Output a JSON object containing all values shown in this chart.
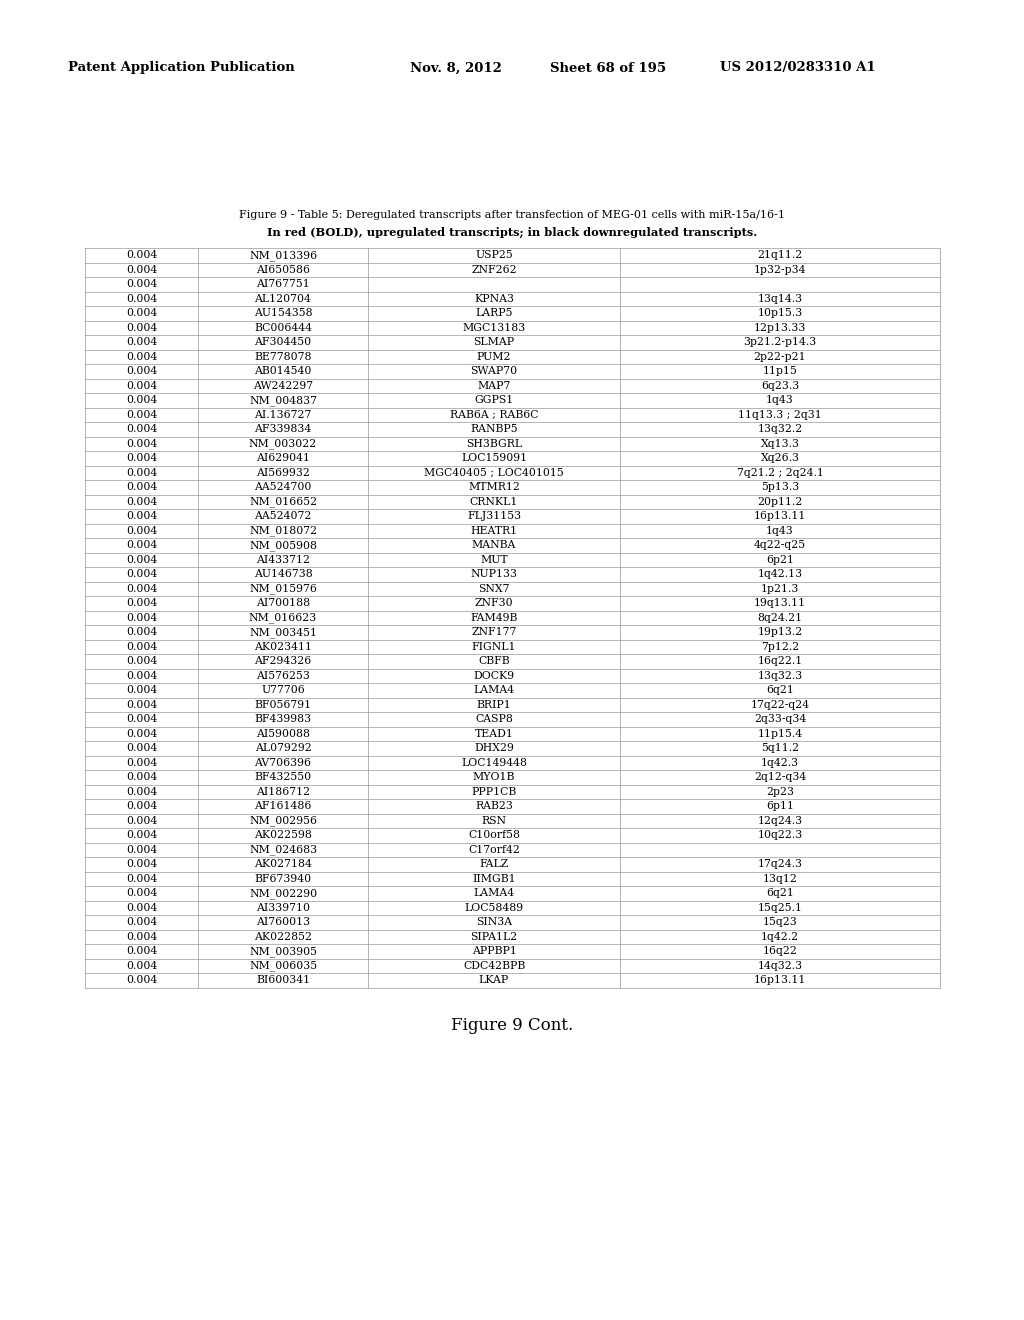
{
  "header_line1": "Patent Application Publication",
  "header_date": "Nov. 8, 2012",
  "header_sheet": "Sheet 68 of 195",
  "header_patent": "US 2012/0283310 A1",
  "title_line1": "Figure 9 - Table 5: Deregulated transcripts after transfection of MEG-01 cells with miR-15a/16-1",
  "title_line2": "In red (BOLD), upregulated transcripts; in black downregulated transcripts.",
  "footer": "Figure 9 Cont.",
  "rows": [
    [
      "0.004",
      "NM_013396",
      "USP25",
      "21q11.2"
    ],
    [
      "0.004",
      "AI650586",
      "ZNF262",
      "1p32-p34"
    ],
    [
      "0.004",
      "AI767751",
      "",
      ""
    ],
    [
      "0.004",
      "AL120704",
      "KPNA3",
      "13q14.3"
    ],
    [
      "0.004",
      "AU154358",
      "LARP5",
      "10p15.3"
    ],
    [
      "0.004",
      "BC006444",
      "MGC13183",
      "12p13.33"
    ],
    [
      "0.004",
      "AF304450",
      "SLMAP",
      "3p21.2-p14.3"
    ],
    [
      "0.004",
      "BE778078",
      "PUM2",
      "2p22-p21"
    ],
    [
      "0.004",
      "AB014540",
      "SWAP70",
      "11p15"
    ],
    [
      "0.004",
      "AW242297",
      "MAP7",
      "6q23.3"
    ],
    [
      "0.004",
      "NM_004837",
      "GGPS1",
      "1q43"
    ],
    [
      "0.004",
      "AI.136727",
      "RAB6A ; RAB6C",
      "11q13.3 ; 2q31"
    ],
    [
      "0.004",
      "AF339834",
      "RANBP5",
      "13q32.2"
    ],
    [
      "0.004",
      "NM_003022",
      "SH3BGRL",
      "Xq13.3"
    ],
    [
      "0.004",
      "AI629041",
      "LOC159091",
      "Xq26.3"
    ],
    [
      "0.004",
      "AI569932",
      "MGC40405 ; LOC401015",
      "7q21.2 ; 2q24.1"
    ],
    [
      "0.004",
      "AA524700",
      "MTMR12",
      "5p13.3"
    ],
    [
      "0.004",
      "NM_016652",
      "CRNKL1",
      "20p11.2"
    ],
    [
      "0.004",
      "AA524072",
      "FLJ31153",
      "16p13.11"
    ],
    [
      "0.004",
      "NM_018072",
      "HEATR1",
      "1q43"
    ],
    [
      "0.004",
      "NM_005908",
      "MANBA",
      "4q22-q25"
    ],
    [
      "0.004",
      "AI433712",
      "MUT",
      "6p21"
    ],
    [
      "0.004",
      "AU146738",
      "NUP133",
      "1q42.13"
    ],
    [
      "0.004",
      "NM_015976",
      "SNX7",
      "1p21.3"
    ],
    [
      "0.004",
      "AI700188",
      "ZNF30",
      "19q13.11"
    ],
    [
      "0.004",
      "NM_016623",
      "FAM49B",
      "8q24.21"
    ],
    [
      "0.004",
      "NM_003451",
      "ZNF177",
      "19p13.2"
    ],
    [
      "0.004",
      "AK023411",
      "FIGNL1",
      "7p12.2"
    ],
    [
      "0.004",
      "AF294326",
      "CBFB",
      "16q22.1"
    ],
    [
      "0.004",
      "AI576253",
      "DOCK9",
      "13q32.3"
    ],
    [
      "0.004",
      "U77706",
      "LAMA4",
      "6q21"
    ],
    [
      "0.004",
      "BF056791",
      "BRIP1",
      "17q22-q24"
    ],
    [
      "0.004",
      "BF439983",
      "CASP8",
      "2q33-q34"
    ],
    [
      "0.004",
      "AI590088",
      "TEAD1",
      "11p15.4"
    ],
    [
      "0.004",
      "AL079292",
      "DHX29",
      "5q11.2"
    ],
    [
      "0.004",
      "AV706396",
      "LOC149448",
      "1q42.3"
    ],
    [
      "0.004",
      "BF432550",
      "MYO1B",
      "2q12-q34"
    ],
    [
      "0.004",
      "AI186712",
      "PPP1CB",
      "2p23"
    ],
    [
      "0.004",
      "AF161486",
      "RAB23",
      "6p11"
    ],
    [
      "0.004",
      "NM_002956",
      "RSN",
      "12q24.3"
    ],
    [
      "0.004",
      "AK022598",
      "C10orf58",
      "10q22.3"
    ],
    [
      "0.004",
      "NM_024683",
      "C17orf42",
      ""
    ],
    [
      "0.004",
      "AK027184",
      "FALZ",
      "17q24.3"
    ],
    [
      "0.004",
      "BF673940",
      "IIMGB1",
      "13q12"
    ],
    [
      "0.004",
      "NM_002290",
      "LAMA4",
      "6q21"
    ],
    [
      "0.004",
      "AI339710",
      "LOC58489",
      "15q25.1"
    ],
    [
      "0.004",
      "AI760013",
      "SIN3A",
      "15q23"
    ],
    [
      "0.004",
      "AK022852",
      "SIPA1L2",
      "1q42.2"
    ],
    [
      "0.004",
      "NM_003905",
      "APPBP1",
      "16q22"
    ],
    [
      "0.004",
      "NM_006035",
      "CDC42BPB",
      "14q32.3"
    ],
    [
      "0.004",
      "BI600341",
      "LKAP",
      "16p13.11"
    ]
  ],
  "bg_color": "#ffffff",
  "text_color": "#000000",
  "line_color": "#999999",
  "font_size": 7.8,
  "header_font_size": 9.5,
  "title_font_size": 8.0,
  "title2_font_size": 8.2,
  "footer_font_size": 12
}
